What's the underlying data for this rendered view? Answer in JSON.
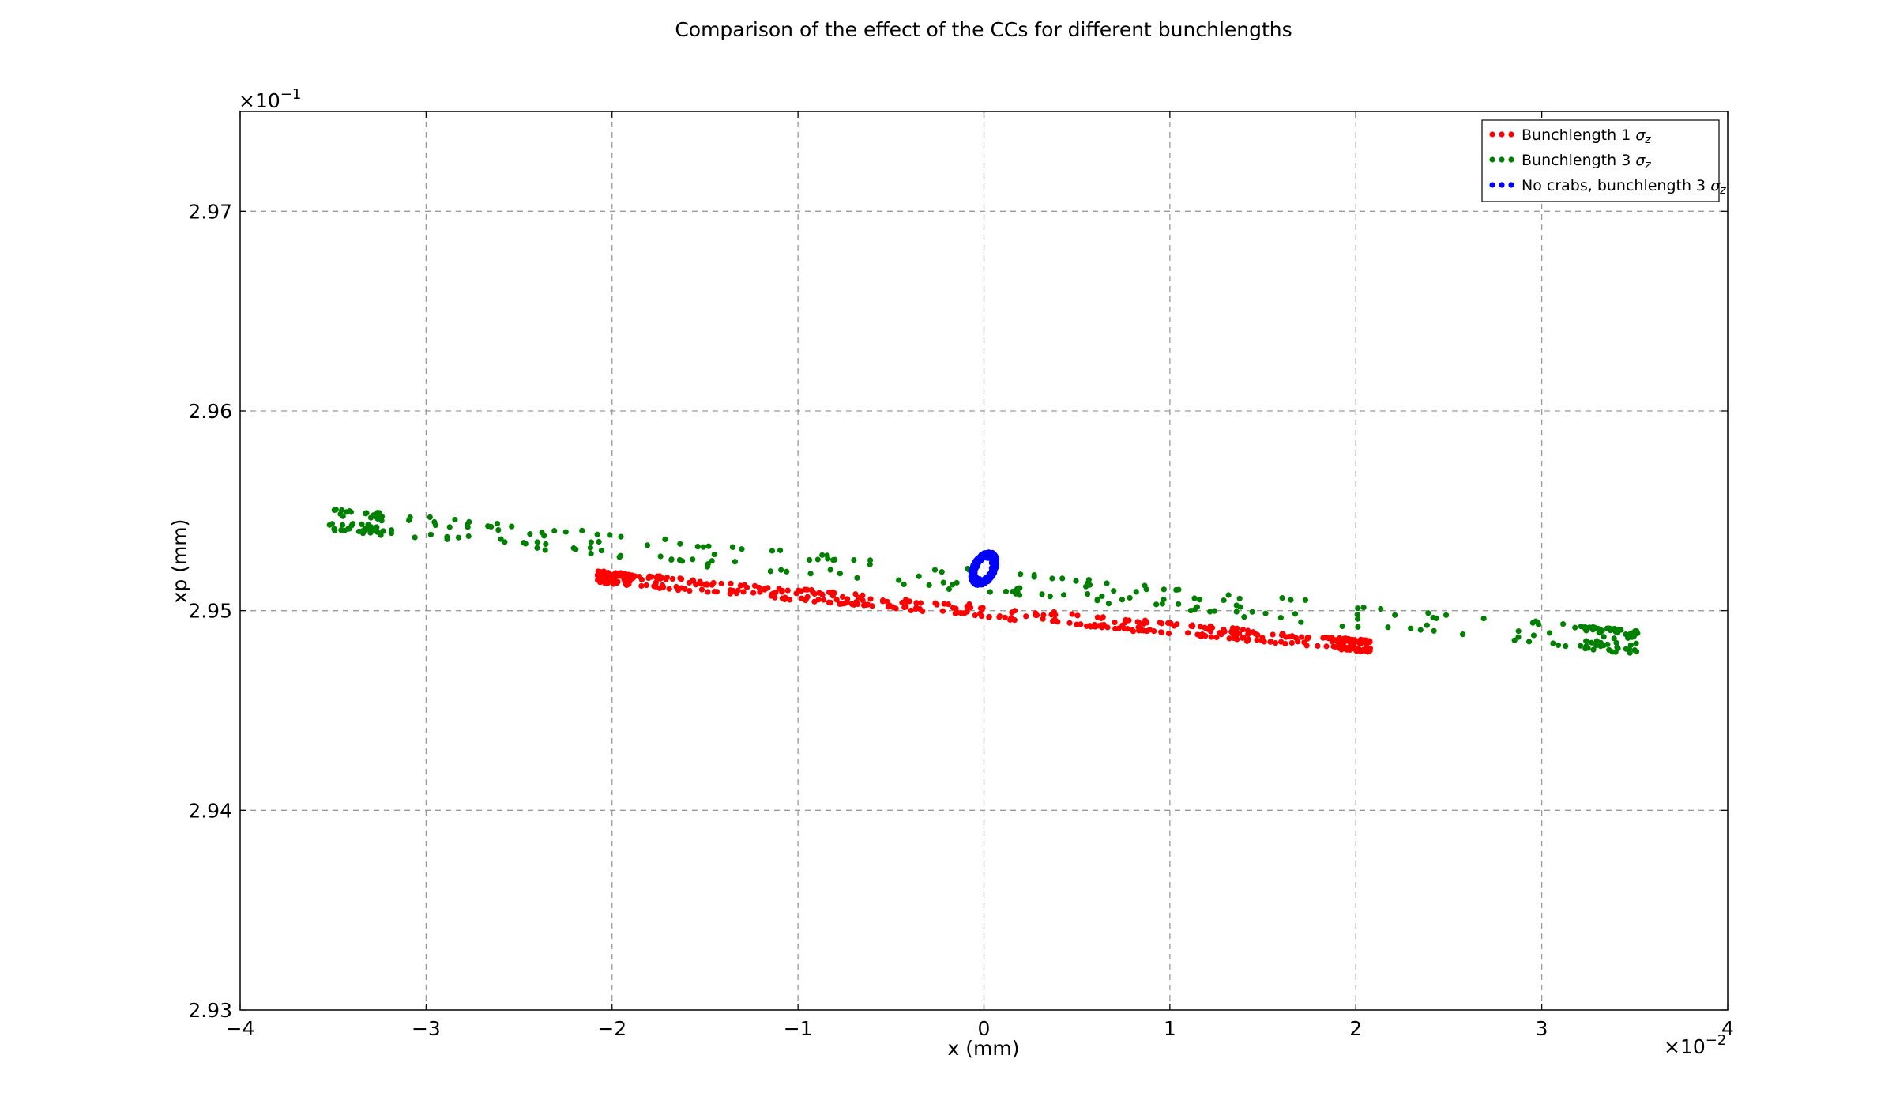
{
  "chart_data": {
    "type": "scatter",
    "title": "Comparison of the effect of the CCs for different bunchlengths",
    "xlabel": "x (mm)",
    "ylabel": "xp (mm)",
    "x_multiplier": "×10",
    "x_multiplier_exp": "−2",
    "y_multiplier": "×10",
    "y_multiplier_exp": "−1",
    "x_scale": 0.01,
    "y_scale": 0.1,
    "xlim": [
      -0.04,
      0.04
    ],
    "ylim": [
      0.293,
      0.2975
    ],
    "xticks": [
      -0.04,
      -0.03,
      -0.02,
      -0.01,
      0,
      0.01,
      0.02,
      0.03,
      0.04
    ],
    "xtick_labels": [
      "−4",
      "−3",
      "−2",
      "−1",
      "0",
      "1",
      "2",
      "3",
      "4"
    ],
    "yticks": [
      0.293,
      0.294,
      0.295,
      0.296,
      0.297
    ],
    "ytick_labels": [
      "2.93",
      "2.94",
      "2.95",
      "2.96",
      "2.97"
    ],
    "grid": true,
    "legend_position": "top-right",
    "legend": [
      {
        "label": "Bunchlength 1 ",
        "sub": "z",
        "color": "#ff0000"
      },
      {
        "label": "Bunchlength 3 ",
        "sub": "z",
        "color": "#008000"
      },
      {
        "label": "No crabs, bunchlength 3 ",
        "sub": "z",
        "color": "#0000ff"
      }
    ],
    "series": [
      {
        "color": "#ff0000",
        "count": 520,
        "distribution": "band",
        "x_range": [
          -0.0208,
          0.0208
        ],
        "center_left": 0.29517,
        "center_right": 0.29482,
        "half_height": 2.8e-05,
        "noise": 4e-06
      },
      {
        "color": "#008000",
        "count": 320,
        "distribution": "band",
        "x_range": [
          -0.0352,
          0.0352
        ],
        "center_left": 0.29546,
        "center_right": 0.29484,
        "half_height": 5.6e-05,
        "noise": 6e-06
      },
      {
        "color": "#0000ff",
        "count": 380,
        "distribution": "ellipse",
        "center_x": 0.0,
        "center_y": 0.29521,
        "x_halfwidth": 0.0007,
        "y_halfheight": 7.8e-05,
        "tilt": 4e-07
      }
    ]
  }
}
